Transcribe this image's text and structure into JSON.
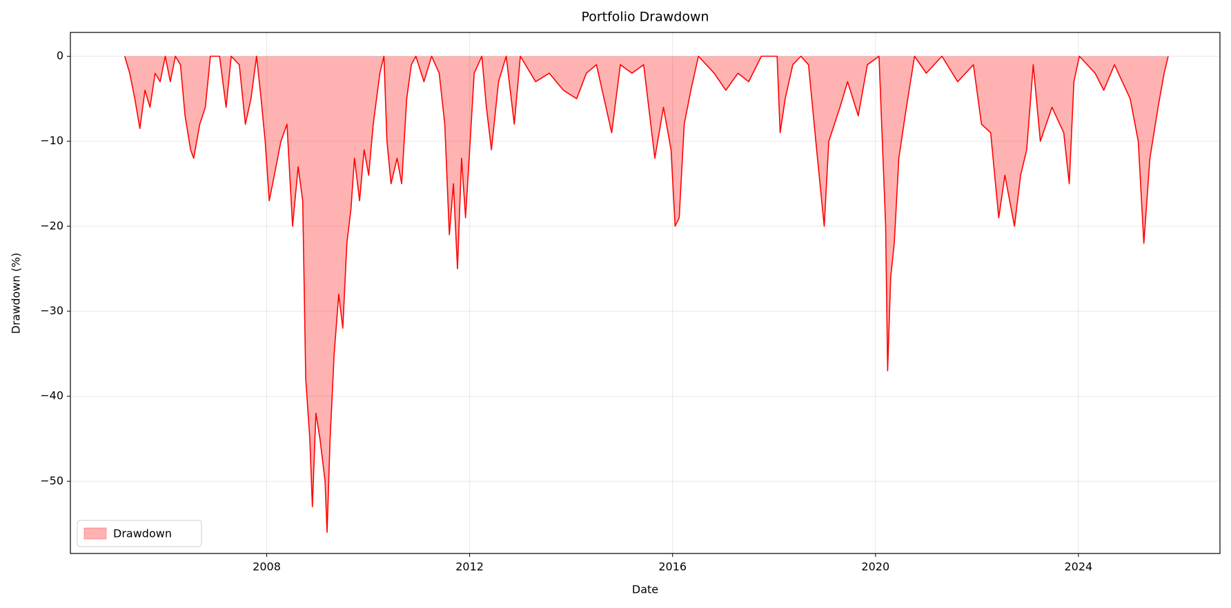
{
  "chart_data": {
    "type": "area",
    "title": "Portfolio Drawdown",
    "x_label": "Date",
    "y_label": "Drawdown (%)",
    "x": [
      2005.2,
      2005.3,
      2005.4,
      2005.5,
      2005.6,
      2005.7,
      2005.8,
      2005.9,
      2006.0,
      2006.1,
      2006.2,
      2006.3,
      2006.39,
      2006.5,
      2006.56,
      2006.68,
      2006.79,
      2006.89,
      2007.07,
      2007.2,
      2007.3,
      2007.46,
      2007.58,
      2007.69,
      2007.8,
      2007.89,
      2007.97,
      2008.05,
      2008.15,
      2008.28,
      2008.4,
      2008.51,
      2008.62,
      2008.71,
      2008.77,
      2008.85,
      2008.9,
      2008.97,
      2009.05,
      2009.15,
      2009.19,
      2009.25,
      2009.33,
      2009.42,
      2009.5,
      2009.58,
      2009.66,
      2009.73,
      2009.83,
      2009.92,
      2010.01,
      2010.1,
      2010.23,
      2010.31,
      2010.37,
      2010.45,
      2010.57,
      2010.66,
      2010.76,
      2010.85,
      2010.94,
      2011.1,
      2011.25,
      2011.4,
      2011.51,
      2011.6,
      2011.68,
      2011.76,
      2011.84,
      2011.92,
      2011.99,
      2012.09,
      2012.24,
      2012.33,
      2012.43,
      2012.57,
      2012.72,
      2012.88,
      2013.0,
      2013.3,
      2013.57,
      2013.85,
      2014.11,
      2014.3,
      2014.5,
      2014.8,
      2014.97,
      2015.2,
      2015.43,
      2015.65,
      2015.82,
      2015.97,
      2016.05,
      2016.13,
      2016.23,
      2016.36,
      2016.51,
      2016.82,
      2017.05,
      2017.29,
      2017.5,
      2017.75,
      2018.06,
      2018.12,
      2018.22,
      2018.37,
      2018.53,
      2018.68,
      2018.84,
      2018.99,
      2019.08,
      2019.3,
      2019.45,
      2019.66,
      2019.84,
      2020.07,
      2020.2,
      2020.24,
      2020.3,
      2020.37,
      2020.46,
      2020.61,
      2020.77,
      2021.0,
      2021.31,
      2021.62,
      2021.93,
      2022.09,
      2022.27,
      2022.43,
      2022.55,
      2022.74,
      2022.86,
      2022.98,
      2023.11,
      2023.25,
      2023.48,
      2023.71,
      2023.82,
      2023.91,
      2024.02,
      2024.33,
      2024.5,
      2024.71,
      2025.02,
      2025.18,
      2025.29,
      2025.41,
      2025.57,
      2025.69,
      2025.77
    ],
    "series": [
      {
        "name": "Drawdown",
        "color": "#ff0000",
        "values": [
          0,
          -2,
          -5,
          -8.5,
          -4,
          -6,
          -2,
          -3,
          0,
          -3,
          0,
          -1,
          -7,
          -11,
          -12,
          -8,
          -6,
          0,
          0,
          -6,
          0,
          -1,
          -8,
          -5,
          0,
          -5,
          -10,
          -17,
          -14,
          -10,
          -8,
          -20,
          -13,
          -17,
          -38,
          -45,
          -53,
          -42,
          -45,
          -50,
          -56,
          -45,
          -35,
          -28,
          -32,
          -22,
          -18,
          -12,
          -17,
          -11,
          -14,
          -8,
          -2,
          0,
          -10,
          -15,
          -12,
          -15,
          -5,
          -1,
          0,
          -3,
          0,
          -2,
          -8,
          -21,
          -15,
          -25,
          -12,
          -19,
          -12,
          -2,
          0,
          -6,
          -11,
          -3,
          0,
          -8,
          0,
          -3,
          -2,
          -4,
          -5,
          -2,
          -1,
          -9,
          -1,
          -2,
          -1,
          -12,
          -6,
          -11,
          -20,
          -19,
          -8,
          -4,
          0,
          -2,
          -4,
          -2,
          -3,
          0,
          0,
          -9,
          -5,
          -1,
          0,
          -1,
          -11,
          -20,
          -10,
          -6,
          -3,
          -7,
          -1,
          0,
          -20,
          -37,
          -26,
          -22,
          -12,
          -6,
          0,
          -2,
          0,
          -3,
          -1,
          -8,
          -9,
          -19,
          -14,
          -20,
          -14,
          -11,
          -1,
          -10,
          -6,
          -9,
          -15,
          -3,
          0,
          -2,
          -4,
          -1,
          -5,
          -10,
          -22,
          -12,
          -6,
          -2,
          0
        ]
      }
    ],
    "xlim": [
      2004.13,
      2026.79
    ],
    "ylim": [
      -58.5,
      2.8
    ],
    "xticks": [
      2008,
      2012,
      2016,
      2020,
      2024
    ],
    "yticks": [
      {
        "value": -50,
        "label": "−50"
      },
      {
        "value": -40,
        "label": "−40"
      },
      {
        "value": -30,
        "label": "−30"
      },
      {
        "value": -20,
        "label": "−20"
      },
      {
        "value": -10,
        "label": "−10"
      },
      0
    ],
    "grid": true,
    "legend_loc": "lower left"
  }
}
